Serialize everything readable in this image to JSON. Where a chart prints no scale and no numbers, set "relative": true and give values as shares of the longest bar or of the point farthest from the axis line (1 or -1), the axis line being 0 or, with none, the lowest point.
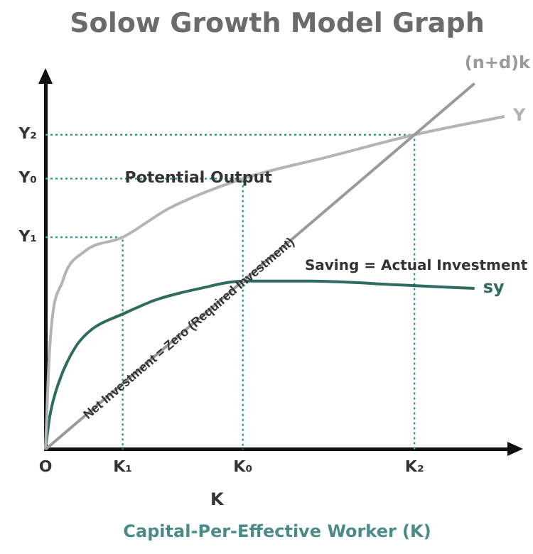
{
  "chart_data": {
    "type": "line",
    "title": "Solow Growth Model Graph",
    "xlabel": "Capital-Per-Effective Worker (K)",
    "relative": true,
    "grid": false,
    "legend": false,
    "marker": "none",
    "line_style": "solid",
    "categories": [
      "O",
      null,
      null,
      null,
      null,
      null,
      null,
      null,
      null,
      null,
      null,
      null,
      null,
      null,
      null,
      null,
      null,
      null,
      "K₁",
      null,
      null,
      null,
      null,
      null,
      null,
      null,
      null,
      null,
      null,
      null,
      null,
      null,
      null,
      null,
      null,
      null,
      null,
      null,
      null,
      null,
      null,
      null,
      null,
      null,
      null,
      null,
      "K₀",
      null,
      null,
      null,
      null,
      null,
      null,
      null,
      null,
      null,
      null,
      null,
      null,
      null,
      null,
      null,
      null,
      null,
      null,
      null,
      null,
      null,
      null,
      null,
      null,
      null,
      null,
      null,
      null,
      null,
      null,
      null,
      null,
      null,
      null,
      null,
      null,
      null,
      null,
      null,
      "K₂",
      null,
      null,
      null,
      null,
      null,
      null,
      null,
      null,
      null,
      null,
      null,
      null,
      null,
      null,
      null,
      null,
      null,
      null,
      null,
      null,
      null,
      null
    ],
    "series": [
      {
        "name": "(n+d)k",
        "color": "#9a9a9a",
        "values": [
          0,
          null,
          null,
          null,
          null,
          null,
          null,
          null,
          null,
          null,
          null,
          null,
          null,
          null,
          null,
          null,
          null,
          null,
          null,
          null,
          null,
          null,
          null,
          null,
          null,
          null,
          null,
          null,
          null,
          null,
          null,
          null,
          null,
          null,
          null,
          null,
          null,
          null,
          null,
          null,
          null,
          null,
          null,
          null,
          null,
          null,
          null,
          null,
          null,
          null,
          null,
          null,
          null,
          null,
          null,
          null,
          null,
          null,
          null,
          null,
          null,
          null,
          null,
          null,
          null,
          null,
          null,
          null,
          null,
          null,
          null,
          null,
          null,
          null,
          null,
          null,
          null,
          null,
          null,
          null,
          null,
          null,
          null,
          null,
          null,
          null,
          null,
          null,
          null,
          null,
          null,
          null,
          null,
          null,
          null,
          null,
          null,
          null,
          null,
          null,
          1,
          null,
          null,
          null,
          null,
          null,
          null,
          null,
          null
        ]
      },
      {
        "name": "Y",
        "color": "#b4b4b4",
        "values": [
          0,
          0.28,
          null,
          null,
          0.46,
          null,
          null,
          null,
          null,
          0.54,
          null,
          null,
          null,
          null,
          null,
          null,
          null,
          null,
          0.58,
          null,
          null,
          null,
          null,
          null,
          null,
          null,
          null,
          null,
          null,
          0.66,
          null,
          null,
          null,
          null,
          null,
          null,
          null,
          null,
          null,
          null,
          null,
          null,
          null,
          null,
          null,
          null,
          0.74,
          null,
          null,
          null,
          null,
          null,
          null,
          null,
          null,
          null,
          null,
          null,
          null,
          null,
          null,
          null,
          null,
          null,
          null,
          null,
          0.8,
          null,
          null,
          null,
          null,
          null,
          null,
          null,
          null,
          null,
          null,
          null,
          null,
          null,
          null,
          null,
          null,
          null,
          null,
          null,
          0.86,
          null,
          null,
          null,
          null,
          null,
          null,
          null,
          null,
          null,
          null,
          null,
          null,
          null,
          null,
          null,
          null,
          null,
          null,
          null,
          null,
          0.91,
          null
        ]
      },
      {
        "name": "sy",
        "color": "#2f6b5f",
        "values": [
          0,
          0.09,
          null,
          0.18,
          null,
          null,
          null,
          0.28,
          null,
          null,
          null,
          0.33,
          null,
          null,
          null,
          null,
          null,
          null,
          0.37,
          null,
          null,
          null,
          null,
          null,
          null,
          null,
          0.41,
          null,
          null,
          null,
          null,
          null,
          null,
          null,
          null,
          null,
          0.44,
          null,
          null,
          null,
          null,
          null,
          null,
          null,
          null,
          null,
          0.46,
          null,
          null,
          null,
          null,
          null,
          null,
          null,
          null,
          null,
          null,
          null,
          null,
          null,
          null,
          null,
          0.46,
          null,
          null,
          null,
          null,
          null,
          null,
          null,
          null,
          null,
          null,
          null,
          null,
          null,
          null,
          null,
          null,
          null,
          null,
          null,
          0.45,
          null,
          null,
          null,
          null,
          null,
          null,
          null,
          null,
          null,
          null,
          null,
          null,
          null,
          null,
          null,
          null,
          null,
          0.44,
          null,
          null,
          null,
          null,
          null,
          null,
          null,
          null
        ]
      }
    ],
    "ref_lines": [
      {
        "axis": "y",
        "value": 0.86,
        "label": "Y₂",
        "color": "#3a9a8a",
        "line_style": "dotted"
      },
      {
        "axis": "y",
        "value": 0.74,
        "label": "Y₀",
        "color": "#3a9a8a",
        "line_style": "dotted"
      },
      {
        "axis": "y",
        "value": 0.58,
        "label": "Y₁",
        "color": "#3a9a8a",
        "line_style": "dotted"
      }
    ],
    "annotations": [
      "Potential Output",
      "Saving = Actual Investment",
      "Net Investment = Zero (Required Investment)",
      "K"
    ]
  }
}
